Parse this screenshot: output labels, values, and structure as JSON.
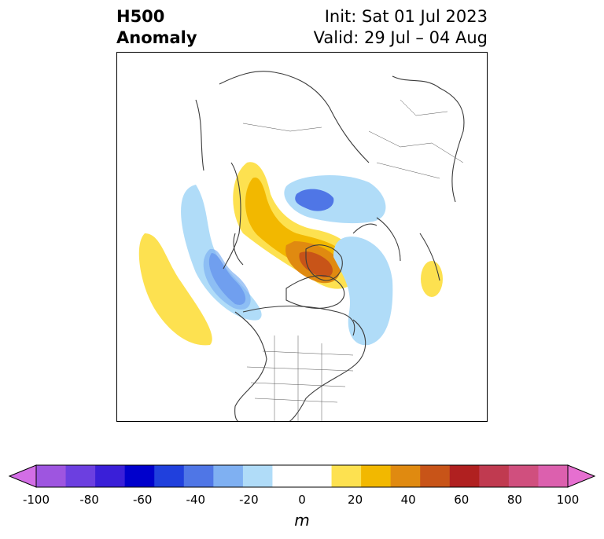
{
  "header": {
    "title_line1": "H500",
    "title_line2": "Anomaly",
    "init": "Init: Sat 01 Jul 2023",
    "valid": "Valid: 29 Jul – 04 Aug"
  },
  "colorbar": {
    "unit": "m",
    "ticks": [
      "-100",
      "-80",
      "-60",
      "-40",
      "-20",
      "0",
      "20",
      "40",
      "60",
      "80",
      "100"
    ],
    "colors": [
      "#d36ee6",
      "#9e55e0",
      "#6c3fe0",
      "#3a1fd8",
      "#0000cc",
      "#2040dd",
      "#4f76e6",
      "#7fb0f2",
      "#b0dcf8",
      "#ffffff",
      "#ffffff",
      "#fde150",
      "#f2b800",
      "#e08a10",
      "#c85418",
      "#b02020",
      "#c03a50",
      "#d04f7e",
      "#dc60ae",
      "#e66fd0"
    ],
    "extend": "both"
  },
  "map": {
    "projection": "polar stereographic, North America / Arctic",
    "positive_color": "#f7c21a",
    "negative_color": "#6aa6f0"
  }
}
